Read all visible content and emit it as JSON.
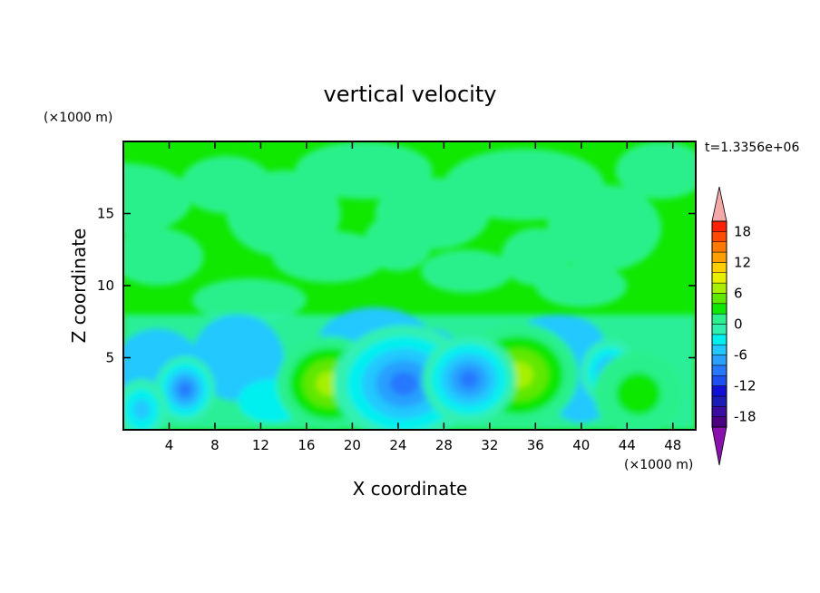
{
  "chart_data": {
    "type": "heatmap",
    "title": "vertical velocity",
    "xlabel": "X coordinate",
    "ylabel": "Z coordinate",
    "x_unit": "(×1000 m)",
    "y_unit": "(×1000 m)",
    "time_label": "t=1.3356e+06",
    "xlim": [
      0,
      50
    ],
    "ylim": [
      0,
      20
    ],
    "x_ticks": [
      4,
      8,
      12,
      16,
      20,
      24,
      28,
      32,
      36,
      40,
      44,
      48
    ],
    "y_ticks": [
      5,
      10,
      15
    ],
    "colorbar": {
      "levels": [
        -20,
        -18,
        -16,
        -14,
        -12,
        -10,
        -8,
        -6,
        -4,
        -2,
        0,
        2,
        4,
        6,
        8,
        10,
        12,
        14,
        16,
        18,
        20
      ],
      "tick_labels": [
        18,
        12,
        6,
        0,
        -6,
        -12,
        -18
      ],
      "colors": [
        "#4B0082",
        "#3A0DA0",
        "#1C1CB8",
        "#1010D8",
        "#1E50F0",
        "#2878FF",
        "#28A0FF",
        "#20C8FF",
        "#00F0F0",
        "#30F0B0",
        "#2CF08C",
        "#10E800",
        "#60E800",
        "#A8F000",
        "#E8F000",
        "#FFD000",
        "#FFA000",
        "#FF7800",
        "#FF4A00",
        "#FF2000"
      ],
      "under_color": "#8B10B0",
      "over_color": "#F4A8A8"
    },
    "features": [
      {
        "x": 18.0,
        "z": 3.2,
        "w": 3.8,
        "value": 8
      },
      {
        "x": 34.5,
        "z": 3.8,
        "w": 4.5,
        "value": 7
      },
      {
        "x": 24.5,
        "z": 3.2,
        "w": -5.5,
        "value": -10
      },
      {
        "x": 30.2,
        "z": 3.5,
        "w": -3.2,
        "value": -9
      },
      {
        "x": 5.4,
        "z": 2.8,
        "w": -1.6,
        "value": -9
      },
      {
        "x": 1.6,
        "z": 1.4,
        "w": -1.2,
        "value": -6
      },
      {
        "x": 42.5,
        "z": 4.0,
        "w": -1.5,
        "value": -7
      },
      {
        "x": 45.0,
        "z": 2.5,
        "w": 3.0,
        "value": 3
      }
    ]
  }
}
